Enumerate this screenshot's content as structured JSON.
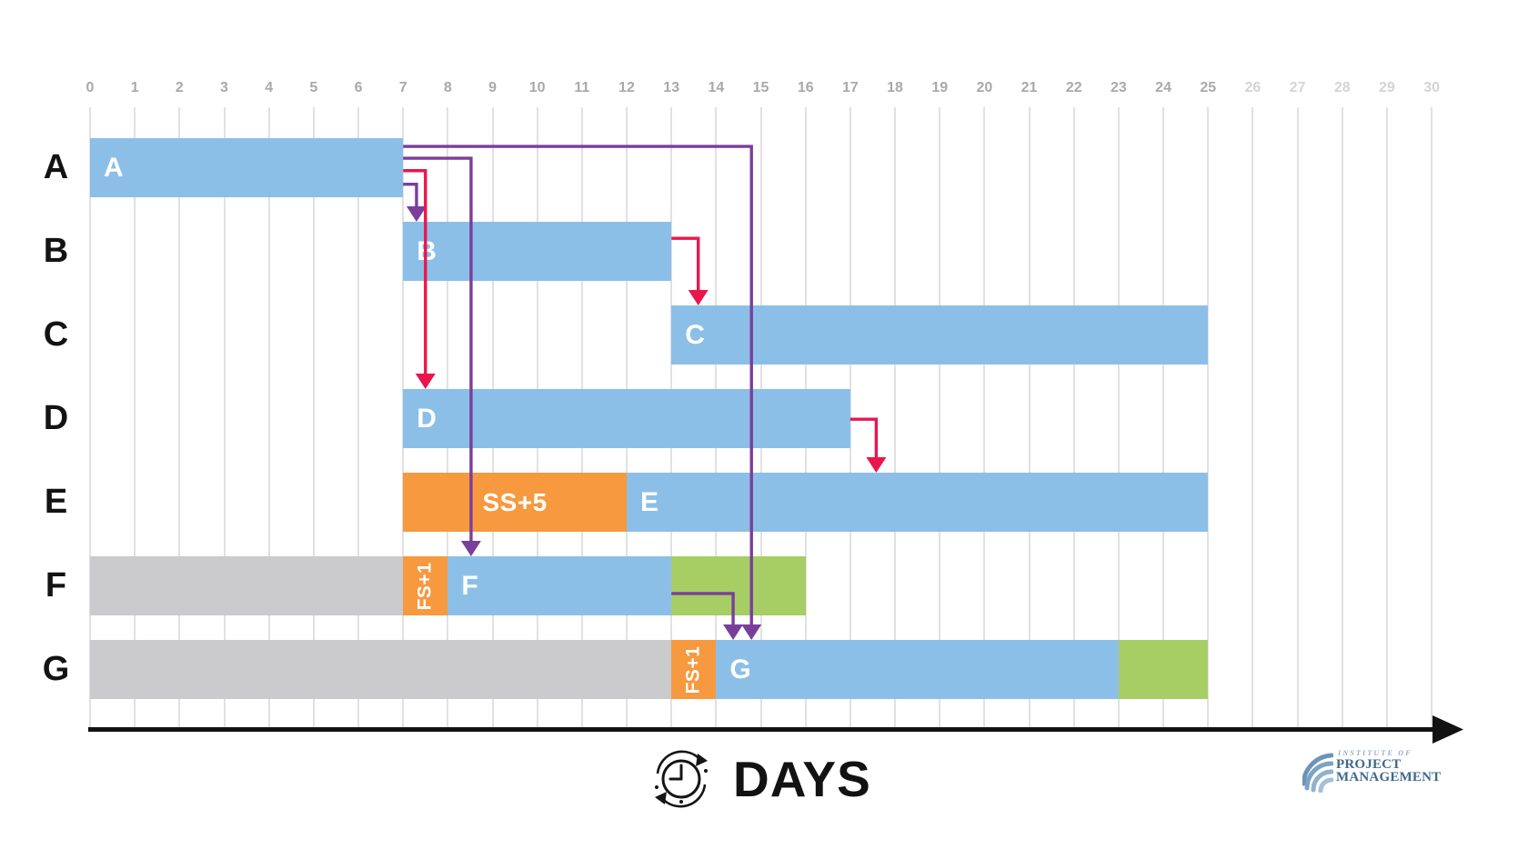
{
  "footer": {
    "label": "DAYS"
  },
  "logo": {
    "line1": "INSTITUTE OF",
    "line2": "PROJECT",
    "line3": "MANAGEMENT"
  },
  "colors": {
    "task_blue": "#8CBFE8",
    "lag_orange": "#F6993F",
    "slack_green": "#A6CE64",
    "elapsed_gray": "#CBCBCD",
    "dep_red": "#E9164C",
    "dep_purple": "#7A3E9B",
    "grid_line": "#E1E1E3",
    "tick_text": "#A9A9AC",
    "tick_text_muted": "#D4D4D7",
    "axis_black": "#121212",
    "bar_label_white": "#FFFFFF",
    "logo_slate": "#3E698E",
    "logo_light": "#97ACC1"
  },
  "chart_data": {
    "type": "bar",
    "variant": "gantt",
    "title": "",
    "xlabel": "DAYS",
    "ylabel": "",
    "x_range": [
      0,
      30
    ],
    "x_ticks": [
      0,
      1,
      2,
      3,
      4,
      5,
      6,
      7,
      8,
      9,
      10,
      11,
      12,
      13,
      14,
      15,
      16,
      17,
      18,
      19,
      20,
      21,
      22,
      23,
      24,
      25,
      26,
      27,
      28,
      29,
      30
    ],
    "x_ticks_muted_from": 26,
    "grid": true,
    "categories": [
      "A",
      "B",
      "C",
      "D",
      "E",
      "F",
      "G"
    ],
    "tasks": [
      {
        "name": "A",
        "segments": [
          {
            "kind": "task",
            "start": 0,
            "end": 7,
            "label": "A"
          }
        ]
      },
      {
        "name": "B",
        "segments": [
          {
            "kind": "task",
            "start": 7,
            "end": 13,
            "label": "B"
          }
        ]
      },
      {
        "name": "C",
        "segments": [
          {
            "kind": "task",
            "start": 13,
            "end": 25,
            "label": "C"
          }
        ]
      },
      {
        "name": "D",
        "segments": [
          {
            "kind": "task",
            "start": 7,
            "end": 17,
            "label": "D"
          }
        ]
      },
      {
        "name": "E",
        "segments": [
          {
            "kind": "lag",
            "start": 7,
            "end": 12,
            "label": "SS+5"
          },
          {
            "kind": "task",
            "start": 12,
            "end": 25,
            "label": "E"
          }
        ]
      },
      {
        "name": "F",
        "segments": [
          {
            "kind": "elapsed",
            "start": 0,
            "end": 7
          },
          {
            "kind": "lag",
            "start": 7,
            "end": 8,
            "label": "FS+1",
            "rotated": true
          },
          {
            "kind": "task",
            "start": 8,
            "end": 13,
            "label": "F"
          },
          {
            "kind": "slack",
            "start": 13,
            "end": 16
          }
        ]
      },
      {
        "name": "G",
        "segments": [
          {
            "kind": "elapsed",
            "start": 0,
            "end": 13
          },
          {
            "kind": "lag",
            "start": 13,
            "end": 14,
            "label": "FS+1",
            "rotated": true
          },
          {
            "kind": "task",
            "start": 14,
            "end": 23,
            "label": "G"
          },
          {
            "kind": "slack",
            "start": 23,
            "end": 25
          }
        ]
      }
    ],
    "dependencies": [
      {
        "from": "A",
        "to": "B",
        "color": "purple"
      },
      {
        "from": "A",
        "to": "D",
        "color": "red"
      },
      {
        "from": "A",
        "to": "F",
        "color": "purple"
      },
      {
        "from": "A",
        "to": "G",
        "color": "purple"
      },
      {
        "from": "B",
        "to": "C",
        "color": "red"
      },
      {
        "from": "D",
        "to": "E",
        "color": "red"
      },
      {
        "from": "F",
        "to": "G",
        "color": "purple"
      }
    ]
  }
}
